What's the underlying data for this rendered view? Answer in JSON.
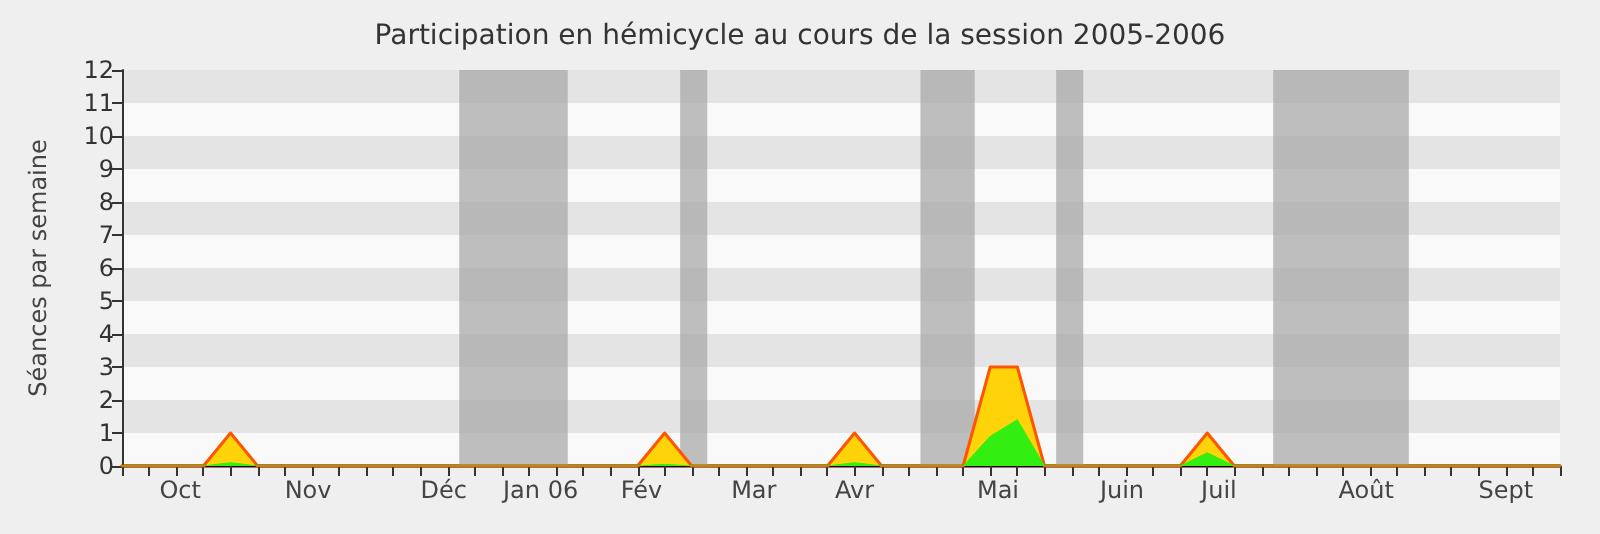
{
  "chart_data": {
    "type": "area",
    "title": "Participation en hémicycle au cours de la session 2005-2006",
    "ylabel": "Séances par semaine",
    "x": [
      "2005-09-19",
      "2005-09-26",
      "2005-10-03",
      "2005-10-10",
      "2005-10-17",
      "2005-10-24",
      "2005-10-31",
      "2005-11-07",
      "2005-11-14",
      "2005-11-21",
      "2005-11-28",
      "2005-12-05",
      "2005-12-12",
      "2005-12-19",
      "2005-12-26",
      "2006-01-02",
      "2006-01-09",
      "2006-01-16",
      "2006-01-23",
      "2006-01-30",
      "2006-02-06",
      "2006-02-13",
      "2006-02-20",
      "2006-02-27",
      "2006-03-06",
      "2006-03-13",
      "2006-03-20",
      "2006-03-27",
      "2006-04-03",
      "2006-04-10",
      "2006-04-17",
      "2006-04-24",
      "2006-05-01",
      "2006-05-08",
      "2006-05-15",
      "2006-05-22",
      "2006-05-29",
      "2006-06-05",
      "2006-06-12",
      "2006-06-19",
      "2006-06-26",
      "2006-07-03",
      "2006-07-10",
      "2006-07-17",
      "2006-07-24",
      "2006-07-31",
      "2006-08-07",
      "2006-08-14",
      "2006-08-21",
      "2006-08-28",
      "2006-09-04",
      "2006-09-11",
      "2006-09-18",
      "2006-09-25"
    ],
    "series": [
      {
        "color": "#ffd30a",
        "values": [
          0,
          0,
          0,
          0,
          1,
          0,
          0,
          0,
          0,
          0,
          0,
          0,
          0,
          0,
          0,
          0,
          0,
          0,
          0,
          0,
          1,
          0,
          0,
          0,
          0,
          0,
          0,
          1,
          0,
          0,
          0,
          0,
          3,
          3,
          0,
          0,
          0,
          0,
          0,
          0,
          1,
          0,
          0,
          0,
          0,
          0,
          0,
          0,
          0,
          0,
          0,
          0,
          0,
          0
        ]
      },
      {
        "color": "#33ee11",
        "values": [
          0,
          0,
          0,
          0,
          0.1,
          0,
          0,
          0,
          0,
          0,
          0,
          0,
          0,
          0,
          0,
          0,
          0,
          0,
          0,
          0,
          0.05,
          0,
          0,
          0,
          0,
          0,
          0,
          0.1,
          0,
          0,
          0,
          0,
          0.9,
          1.4,
          0,
          0,
          0,
          0,
          0,
          0,
          0.4,
          0,
          0,
          0,
          0,
          0,
          0,
          0,
          0,
          0,
          0,
          0,
          0,
          0
        ]
      }
    ],
    "xlim": [
      "2005-09-19",
      "2006-09-25"
    ],
    "xticks": [
      {
        "value": "2005-10-04",
        "label": "Oct"
      },
      {
        "value": "2005-11-06",
        "label": "Nov"
      },
      {
        "value": "2005-12-11",
        "label": "Déc"
      },
      {
        "value": "2006-01-05",
        "label": "Jan 06"
      },
      {
        "value": "2006-01-31",
        "label": "Fév"
      },
      {
        "value": "2006-03-01",
        "label": "Mar"
      },
      {
        "value": "2006-03-27",
        "label": "Avr"
      },
      {
        "value": "2006-05-03",
        "label": "Mai"
      },
      {
        "value": "2006-06-04",
        "label": "Juin"
      },
      {
        "value": "2006-06-29",
        "label": "Juil"
      },
      {
        "value": "2006-08-06",
        "label": "Août"
      },
      {
        "value": "2006-09-11",
        "label": "Sept"
      }
    ],
    "ylim": [
      0,
      12
    ],
    "yticks": [
      0,
      1,
      2,
      3,
      4,
      5,
      6,
      7,
      8,
      9,
      10,
      11,
      12
    ],
    "bands": [
      {
        "axis": "x",
        "from": "2005-12-15",
        "to": "2006-01-12",
        "color": "#aaaaaa"
      },
      {
        "axis": "x",
        "from": "2006-02-10",
        "to": "2006-02-17",
        "color": "#aaaaaa"
      },
      {
        "axis": "x",
        "from": "2006-04-13",
        "to": "2006-04-27",
        "color": "#aaaaaa"
      },
      {
        "axis": "x",
        "from": "2006-05-18",
        "to": "2006-05-25",
        "color": "#aaaaaa"
      },
      {
        "axis": "x",
        "from": "2006-07-13",
        "to": "2006-08-17",
        "color": "#aaaaaa"
      }
    ],
    "line_style": "solid",
    "marker": "none"
  }
}
